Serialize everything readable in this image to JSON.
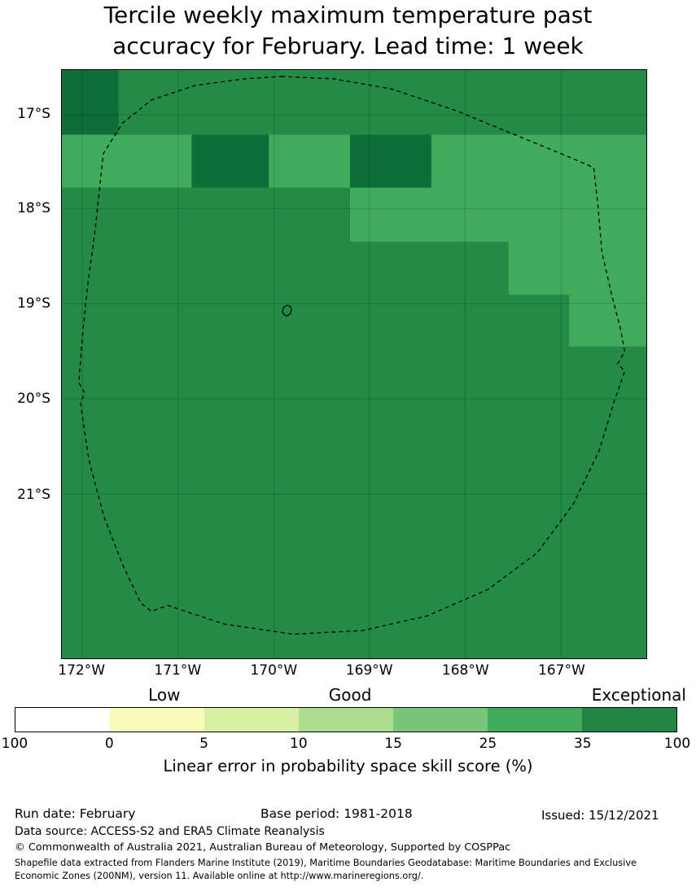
{
  "title": {
    "line1": "Tercile weekly maximum temperature past",
    "line2": "accuracy for February. Lead time: 1 week"
  },
  "footer": {
    "run_date": "Run date: February",
    "base_period": "Base period: 1981-2018",
    "issued": "Issued: 15/12/2021",
    "data_source": "Data source: ACCESS-S2 and ERA5 Climate Reanalysis",
    "copyright": "© Commonwealth of Australia 2021, Australian Bureau of Meteorology, Supported by COSPPac",
    "shapefile": "Shapefile data extracted from Flanders Marine Institute (2019), Maritime Boundaries Geodatabase: Maritime Boundaries and Exclusive Economic Zones (200NM), version 11. Available online at http://www.marineregions.org/."
  },
  "chart_data": {
    "type": "heatmap",
    "title": "Tercile weekly maximum temperature past accuracy for February. Lead time: 1 week",
    "region_described": "Niue EEZ (dashed maritime boundary) with island outline near 19°S 170°W",
    "x_axis": {
      "label": "",
      "ticks": [
        "172°W",
        "171°W",
        "170°W",
        "169°W",
        "168°W",
        "167°W"
      ],
      "tick_positions": [
        0.035,
        0.199,
        0.363,
        0.526,
        0.69,
        0.854
      ],
      "range_deg_w": [
        172.2,
        166.1
      ]
    },
    "y_axis": {
      "label": "",
      "ticks": [
        "17°S",
        "18°S",
        "19°S",
        "20°S",
        "21°S"
      ],
      "tick_positions": [
        0.076,
        0.236,
        0.397,
        0.559,
        0.721
      ],
      "range_deg_s": [
        16.5,
        22.7
      ]
    },
    "grid": "on",
    "colors": {
      "high": "#238b45",
      "mid": "#41ab5d",
      "very_high": "#0f6e38"
    },
    "value_bins": {
      "high": "35-100 skill (dark green, dominant field)",
      "mid": "25-35 skill (lighter green band top and upper-right staircase)",
      "very_high": "upper end of 35-100 bin (darkest patches)"
    },
    "regions": {
      "mid": [
        {
          "x": 0.0,
          "y": 0.11,
          "w": 0.222,
          "h": 0.09
        },
        {
          "x": 0.354,
          "y": 0.11,
          "w": 0.139,
          "h": 0.09
        },
        {
          "x": 0.632,
          "y": 0.11,
          "w": 0.368,
          "h": 0.09
        },
        {
          "x": 0.493,
          "y": 0.2,
          "w": 0.507,
          "h": 0.092
        },
        {
          "x": 0.764,
          "y": 0.292,
          "w": 0.236,
          "h": 0.09
        },
        {
          "x": 0.868,
          "y": 0.382,
          "w": 0.132,
          "h": 0.088
        }
      ],
      "very_high": [
        {
          "x": 0.0,
          "y": 0.0,
          "w": 0.097,
          "h": 0.11
        },
        {
          "x": 0.222,
          "y": 0.11,
          "w": 0.132,
          "h": 0.09
        },
        {
          "x": 0.493,
          "y": 0.11,
          "w": 0.139,
          "h": 0.09
        }
      ]
    },
    "boundary": [
      [
        0.375,
        0.011
      ],
      [
        0.465,
        0.015
      ],
      [
        0.563,
        0.032
      ],
      [
        0.674,
        0.069
      ],
      [
        0.785,
        0.114
      ],
      [
        0.868,
        0.148
      ],
      [
        0.91,
        0.166
      ],
      [
        0.917,
        0.228
      ],
      [
        0.924,
        0.31
      ],
      [
        0.94,
        0.379
      ],
      [
        0.956,
        0.441
      ],
      [
        0.963,
        0.479
      ],
      [
        0.951,
        0.499
      ],
      [
        0.963,
        0.512
      ],
      [
        0.944,
        0.566
      ],
      [
        0.919,
        0.648
      ],
      [
        0.875,
        0.738
      ],
      [
        0.813,
        0.821
      ],
      [
        0.729,
        0.883
      ],
      [
        0.625,
        0.928
      ],
      [
        0.514,
        0.953
      ],
      [
        0.396,
        0.959
      ],
      [
        0.278,
        0.942
      ],
      [
        0.181,
        0.91
      ],
      [
        0.153,
        0.92
      ],
      [
        0.135,
        0.906
      ],
      [
        0.104,
        0.841
      ],
      [
        0.072,
        0.759
      ],
      [
        0.046,
        0.662
      ],
      [
        0.032,
        0.566
      ],
      [
        0.039,
        0.549
      ],
      [
        0.029,
        0.531
      ],
      [
        0.035,
        0.455
      ],
      [
        0.044,
        0.366
      ],
      [
        0.057,
        0.272
      ],
      [
        0.071,
        0.142
      ],
      [
        0.104,
        0.09
      ],
      [
        0.153,
        0.051
      ],
      [
        0.229,
        0.026
      ],
      [
        0.313,
        0.015
      ]
    ],
    "island": [
      [
        0.38,
        0.403
      ],
      [
        0.386,
        0.4
      ],
      [
        0.391,
        0.402
      ],
      [
        0.393,
        0.408
      ],
      [
        0.391,
        0.414
      ],
      [
        0.386,
        0.418
      ],
      [
        0.38,
        0.416
      ],
      [
        0.377,
        0.41
      ]
    ],
    "colorbar": {
      "position": "bottom horizontal",
      "segments": [
        "#ffffff",
        "#f7fcb9",
        "#d9f0a3",
        "#addd8e",
        "#78c679",
        "#41ab5d",
        "#238443"
      ],
      "tick_labels": [
        "100",
        "0",
        "5",
        "10",
        "15",
        "25",
        "35",
        "100"
      ],
      "quality_labels": [
        {
          "text": "Low",
          "pos": 0.236
        },
        {
          "text": "Good",
          "pos": 0.503
        },
        {
          "text": "Exceptional",
          "pos": 0.918
        }
      ],
      "caption": "Linear error in probability space skill score (%)"
    }
  }
}
